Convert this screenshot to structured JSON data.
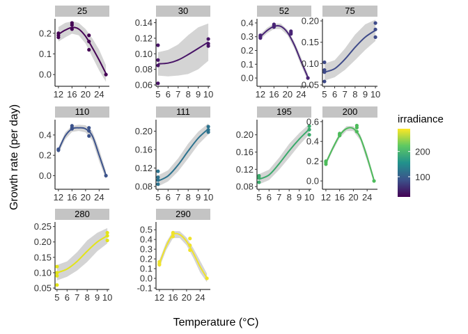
{
  "xlabel": "Temperature (°C)",
  "ylabel": "Growth rate (per day)",
  "legend": {
    "title": "irradiance",
    "ticks": [
      100,
      200
    ],
    "range": [
      20,
      290
    ],
    "colors": [
      "#440154",
      "#3b528b",
      "#21918c",
      "#5ec962",
      "#fde725"
    ]
  },
  "chart_data": [
    {
      "type": "scatter",
      "strip": "25",
      "color": "#440154",
      "xlim": [
        11,
        27
      ],
      "ylim": [
        -0.05,
        0.27
      ],
      "xticks": [
        12,
        16,
        20,
        24
      ],
      "yticks": [
        0.0,
        0.1,
        0.2
      ],
      "ytick_labels": [
        "0.0",
        "0.1",
        "0.2"
      ],
      "points": [
        [
          12,
          0.19
        ],
        [
          12,
          0.2
        ],
        [
          12,
          0.18
        ],
        [
          16,
          0.22
        ],
        [
          16,
          0.24
        ],
        [
          16,
          0.25
        ],
        [
          21,
          0.16
        ],
        [
          21,
          0.12
        ],
        [
          21,
          0.19
        ],
        [
          26,
          0.0
        ]
      ],
      "fit": [
        [
          12,
          0.195
        ],
        [
          14,
          0.215
        ],
        [
          16,
          0.228
        ],
        [
          18,
          0.22
        ],
        [
          20,
          0.185
        ],
        [
          22,
          0.13
        ],
        [
          24,
          0.07
        ],
        [
          26,
          0.005
        ]
      ],
      "band": [
        0.035,
        0.035,
        0.03,
        0.03,
        0.035,
        0.045,
        0.05,
        0.04
      ]
    },
    {
      "type": "scatter",
      "strip": "30",
      "color": "#481467",
      "xlim": [
        4.8,
        10.2
      ],
      "ylim": [
        0.06,
        0.145
      ],
      "xticks": [
        5,
        6,
        7,
        8,
        9,
        10
      ],
      "yticks": [
        0.06,
        0.08,
        0.1,
        0.12,
        0.14
      ],
      "ytick_labels": [
        "0.06",
        "0.08",
        "0.10",
        "0.12",
        "0.14"
      ],
      "points": [
        [
          5,
          0.062
        ],
        [
          5,
          0.085
        ],
        [
          5,
          0.092
        ],
        [
          5,
          0.111
        ],
        [
          10,
          0.119
        ],
        [
          10,
          0.11
        ],
        [
          10,
          0.113
        ]
      ],
      "fit": [
        [
          5,
          0.087
        ],
        [
          6,
          0.088
        ],
        [
          7,
          0.092
        ],
        [
          8,
          0.099
        ],
        [
          9,
          0.107
        ],
        [
          10,
          0.115
        ]
      ],
      "band": [
        0.015,
        0.017,
        0.02,
        0.025,
        0.027,
        0.024
      ]
    },
    {
      "type": "scatter",
      "strip": "52",
      "color": "#482475",
      "xlim": [
        11,
        27
      ],
      "ylim": [
        -0.05,
        0.43
      ],
      "xticks": [
        12,
        16,
        20,
        24
      ],
      "yticks": [
        0.0,
        0.1,
        0.2,
        0.3,
        0.4
      ],
      "ytick_labels": [
        "0.0",
        "0.1",
        "0.2",
        "0.3",
        "0.4"
      ],
      "points": [
        [
          12,
          0.29
        ],
        [
          12,
          0.31
        ],
        [
          12,
          0.3
        ],
        [
          16,
          0.38
        ],
        [
          16,
          0.39
        ],
        [
          16,
          0.37
        ],
        [
          21,
          0.32
        ],
        [
          21,
          0.33
        ],
        [
          21,
          0.34
        ],
        [
          26,
          0.0
        ]
      ],
      "fit": [
        [
          12,
          0.3
        ],
        [
          14,
          0.345
        ],
        [
          16,
          0.375
        ],
        [
          18,
          0.375
        ],
        [
          20,
          0.33
        ],
        [
          22,
          0.24
        ],
        [
          24,
          0.12
        ],
        [
          26,
          0.005
        ]
      ],
      "band": [
        0.02,
        0.02,
        0.02,
        0.02,
        0.02,
        0.025,
        0.03,
        0.025
      ]
    },
    {
      "type": "scatter",
      "strip": "75",
      "color": "#3e4a89",
      "xlim": [
        4.8,
        10.2
      ],
      "ylim": [
        0.05,
        0.205
      ],
      "xticks": [
        5,
        6,
        7,
        8,
        9,
        10
      ],
      "yticks": [
        0.05,
        0.1,
        0.15,
        0.2
      ],
      "ytick_labels": [
        "0.05",
        "0.10",
        "0.15",
        "0.20"
      ],
      "points": [
        [
          5,
          0.058
        ],
        [
          5,
          0.08
        ],
        [
          5,
          0.085
        ],
        [
          5,
          0.103
        ],
        [
          10,
          0.195
        ],
        [
          10,
          0.18
        ],
        [
          10,
          0.162
        ]
      ],
      "fit": [
        [
          5,
          0.08
        ],
        [
          6,
          0.088
        ],
        [
          7,
          0.11
        ],
        [
          8,
          0.138
        ],
        [
          9,
          0.162
        ],
        [
          10,
          0.178
        ]
      ],
      "band": [
        0.02,
        0.02,
        0.025,
        0.03,
        0.03,
        0.025
      ]
    },
    {
      "type": "scatter",
      "strip": "110",
      "color": "#3b528b",
      "xlim": [
        11,
        27
      ],
      "ylim": [
        -0.12,
        0.55
      ],
      "xticks": [
        12,
        16,
        20,
        24
      ],
      "yticks": [
        0.0,
        0.2,
        0.4
      ],
      "ytick_labels": [
        "0.0",
        "0.2",
        "0.4"
      ],
      "points": [
        [
          12,
          0.25
        ],
        [
          12,
          0.26
        ],
        [
          16,
          0.47
        ],
        [
          16,
          0.46
        ],
        [
          16,
          0.49
        ],
        [
          21,
          0.47
        ],
        [
          21,
          0.39
        ],
        [
          21,
          0.44
        ],
        [
          26,
          0.0
        ]
      ],
      "fit": [
        [
          12,
          0.25
        ],
        [
          14,
          0.39
        ],
        [
          16,
          0.46
        ],
        [
          18,
          0.47
        ],
        [
          20,
          0.46
        ],
        [
          22,
          0.39
        ],
        [
          24,
          0.2
        ],
        [
          26,
          0.005
        ]
      ],
      "band": [
        0.03,
        0.035,
        0.03,
        0.03,
        0.035,
        0.045,
        0.06,
        0.04
      ]
    },
    {
      "type": "scatter",
      "strip": "111",
      "color": "#2c728e",
      "xlim": [
        4.8,
        10.2
      ],
      "ylim": [
        0.077,
        0.225
      ],
      "xticks": [
        5,
        6,
        7,
        8,
        9,
        10
      ],
      "yticks": [
        0.08,
        0.12,
        0.16,
        0.2
      ],
      "ytick_labels": [
        "0.08",
        "0.12",
        "0.16",
        "0.20"
      ],
      "points": [
        [
          5,
          0.085
        ],
        [
          5,
          0.1
        ],
        [
          5,
          0.094
        ],
        [
          5,
          0.113
        ],
        [
          10,
          0.21
        ],
        [
          10,
          0.203
        ],
        [
          10,
          0.198
        ]
      ],
      "fit": [
        [
          5,
          0.092
        ],
        [
          6,
          0.103
        ],
        [
          7,
          0.127
        ],
        [
          8,
          0.157
        ],
        [
          9,
          0.185
        ],
        [
          10,
          0.205
        ]
      ],
      "band": [
        0.012,
        0.012,
        0.014,
        0.016,
        0.014,
        0.012
      ]
    },
    {
      "type": "scatter",
      "strip": "195",
      "color": "#3aaa6b",
      "xlim": [
        4.8,
        10.2
      ],
      "ylim": [
        0.077,
        0.235
      ],
      "xticks": [
        5,
        6,
        7,
        8,
        9,
        10
      ],
      "yticks": [
        0.08,
        0.12,
        0.16,
        0.2
      ],
      "ytick_labels": [
        "0.08",
        "0.12",
        "0.16",
        "0.20"
      ],
      "points": [
        [
          5,
          0.09
        ],
        [
          5,
          0.1
        ],
        [
          5,
          0.105
        ],
        [
          10,
          0.22
        ],
        [
          10,
          0.212
        ],
        [
          10,
          0.2
        ]
      ],
      "fit": [
        [
          5,
          0.097
        ],
        [
          6,
          0.107
        ],
        [
          7,
          0.133
        ],
        [
          8,
          0.163
        ],
        [
          9,
          0.19
        ],
        [
          10,
          0.213
        ]
      ],
      "band": [
        0.012,
        0.012,
        0.014,
        0.016,
        0.014,
        0.012
      ]
    },
    {
      "type": "scatter",
      "strip": "200",
      "color": "#4dbb5b",
      "xlim": [
        11,
        27
      ],
      "ylim": [
        -0.07,
        0.62
      ],
      "xticks": [
        12,
        16,
        20,
        24
      ],
      "yticks": [
        0.0,
        0.2,
        0.4,
        0.6
      ],
      "ytick_labels": [
        "0.0",
        "0.2",
        "0.4",
        "0.6"
      ],
      "points": [
        [
          12,
          0.17
        ],
        [
          12,
          0.19
        ],
        [
          12,
          0.2
        ],
        [
          16,
          0.46
        ],
        [
          16,
          0.47
        ],
        [
          16,
          0.48
        ],
        [
          21,
          0.54
        ],
        [
          21,
          0.5
        ],
        [
          21,
          0.56
        ],
        [
          26,
          0.0
        ]
      ],
      "fit": [
        [
          12,
          0.18
        ],
        [
          14,
          0.33
        ],
        [
          16,
          0.46
        ],
        [
          18,
          0.53
        ],
        [
          20,
          0.53
        ],
        [
          22,
          0.44
        ],
        [
          24,
          0.24
        ],
        [
          26,
          0.005
        ]
      ],
      "band": [
        0.025,
        0.025,
        0.025,
        0.025,
        0.025,
        0.03,
        0.04,
        0.03
      ]
    },
    {
      "type": "scatter",
      "strip": "280",
      "color": "#e3e418",
      "xlim": [
        4.8,
        10.2
      ],
      "ylim": [
        0.05,
        0.265
      ],
      "xticks": [
        5,
        6,
        7,
        8,
        9,
        10
      ],
      "yticks": [
        0.05,
        0.1,
        0.15,
        0.2,
        0.25
      ],
      "ytick_labels": [
        "0.05",
        "0.10",
        "0.15",
        "0.20",
        "0.25"
      ],
      "points": [
        [
          5,
          0.06
        ],
        [
          5,
          0.12
        ],
        [
          5,
          0.1
        ],
        [
          5,
          0.09
        ],
        [
          10,
          0.23
        ],
        [
          10,
          0.205
        ],
        [
          10,
          0.22
        ]
      ],
      "fit": [
        [
          5,
          0.1
        ],
        [
          6,
          0.112
        ],
        [
          7,
          0.137
        ],
        [
          8,
          0.17
        ],
        [
          9,
          0.2
        ],
        [
          10,
          0.22
        ]
      ],
      "band": [
        0.025,
        0.025,
        0.03,
        0.035,
        0.03,
        0.025
      ]
    },
    {
      "type": "scatter",
      "strip": "290",
      "color": "#f0e32a",
      "xlim": [
        11,
        27
      ],
      "ylim": [
        -0.1,
        0.58
      ],
      "xticks": [
        12,
        16,
        20,
        24
      ],
      "yticks": [
        -0.1,
        0.0,
        0.1,
        0.2,
        0.3,
        0.4,
        0.5
      ],
      "ytick_labels": [
        "-0.1",
        "0.0",
        "0.1",
        "0.2",
        "0.3",
        "0.4",
        "0.5"
      ],
      "points": [
        [
          12,
          0.14
        ],
        [
          12,
          0.17
        ],
        [
          12,
          0.15
        ],
        [
          16,
          0.43
        ],
        [
          16,
          0.46
        ],
        [
          16,
          0.47
        ],
        [
          21,
          0.41
        ],
        [
          21,
          0.29
        ],
        [
          21,
          0.34
        ],
        [
          26,
          0.0
        ]
      ],
      "fit": [
        [
          12,
          0.15
        ],
        [
          14,
          0.33
        ],
        [
          16,
          0.45
        ],
        [
          18,
          0.45
        ],
        [
          20,
          0.38
        ],
        [
          22,
          0.26
        ],
        [
          24,
          0.12
        ],
        [
          26,
          0.005
        ]
      ],
      "band": [
        0.04,
        0.04,
        0.035,
        0.035,
        0.04,
        0.05,
        0.06,
        0.045
      ]
    }
  ]
}
